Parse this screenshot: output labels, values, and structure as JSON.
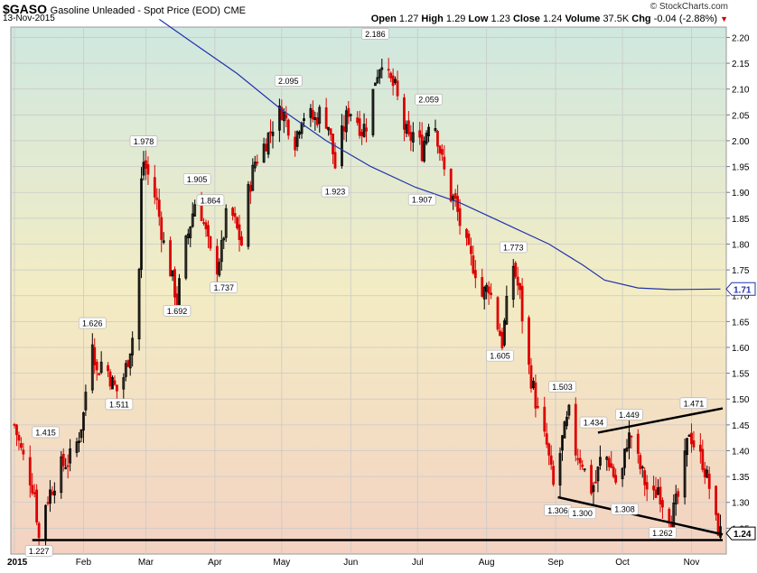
{
  "header": {
    "symbol": "$GASO",
    "description": "Gasoline Unleaded - Spot Price (EOD)",
    "exchange": "CME",
    "date": "13-Nov-2015",
    "brand": "© StockCharts.com",
    "open_label": "Open",
    "open": "1.27",
    "high_label": "High",
    "high": "1.29",
    "low_label": "Low",
    "low": "1.23",
    "close_label": "Close",
    "close": "1.24",
    "volume_label": "Volume",
    "volume": "37.5K",
    "chg_label": "Chg",
    "chg": "-0.04 (-2.88%)"
  },
  "colors": {
    "up": "#000000",
    "down": "#dd0000",
    "ma": "#2233aa",
    "bg_top": "#cfe8e0",
    "bg_mid": "#f3ecc4",
    "bg_bottom": "#f3d2c2"
  },
  "chart_data": {
    "type": "candlestick",
    "ylim": [
      1.2,
      2.22
    ],
    "y_ticks": [
      "2.20",
      "2.15",
      "2.10",
      "2.05",
      "2.00",
      "1.95",
      "1.90",
      "1.85",
      "1.80",
      "1.75",
      "1.70",
      "1.65",
      "1.60",
      "1.55",
      "1.50",
      "1.45",
      "1.40",
      "1.35",
      "1.30",
      "1.25"
    ],
    "x_labels": [
      {
        "label": "2015",
        "day": 0
      },
      {
        "label": "Feb",
        "day": 31
      },
      {
        "label": "Mar",
        "day": 59
      },
      {
        "label": "Apr",
        "day": 90
      },
      {
        "label": "May",
        "day": 120
      },
      {
        "label": "Jun",
        "day": 151
      },
      {
        "label": "Jul",
        "day": 181
      },
      {
        "label": "Aug",
        "day": 212
      },
      {
        "label": "Sep",
        "day": 243
      },
      {
        "label": "Oct",
        "day": 273
      },
      {
        "label": "Nov",
        "day": 304
      }
    ],
    "x_range_days": [
      0,
      318
    ],
    "price_path": [
      [
        0,
        1.45
      ],
      [
        3,
        1.4
      ],
      [
        6,
        1.36
      ],
      [
        9,
        1.32
      ],
      [
        11,
        1.23
      ],
      [
        14,
        1.3
      ],
      [
        18,
        1.34
      ],
      [
        21,
        1.37
      ],
      [
        24,
        1.38
      ],
      [
        27,
        1.4
      ],
      [
        29,
        1.43
      ],
      [
        31,
        1.47
      ],
      [
        33,
        1.56
      ],
      [
        35,
        1.62
      ],
      [
        37,
        1.55
      ],
      [
        40,
        1.58
      ],
      [
        44,
        1.53
      ],
      [
        47,
        1.51
      ],
      [
        50,
        1.56
      ],
      [
        53,
        1.62
      ],
      [
        56,
        1.75
      ],
      [
        57,
        1.92
      ],
      [
        58,
        1.96
      ],
      [
        61,
        1.92
      ],
      [
        64,
        1.88
      ],
      [
        67,
        1.8
      ],
      [
        70,
        1.75
      ],
      [
        73,
        1.69
      ],
      [
        76,
        1.78
      ],
      [
        79,
        1.84
      ],
      [
        82,
        1.9
      ],
      [
        85,
        1.84
      ],
      [
        88,
        1.78
      ],
      [
        90,
        1.74
      ],
      [
        93,
        1.79
      ],
      [
        96,
        1.88
      ],
      [
        99,
        1.84
      ],
      [
        102,
        1.8
      ],
      [
        105,
        1.9
      ],
      [
        108,
        1.96
      ],
      [
        111,
        1.98
      ],
      [
        114,
        2.01
      ],
      [
        117,
        2.04
      ],
      [
        120,
        2.06
      ],
      [
        123,
        2.03
      ],
      [
        126,
        2.0
      ],
      [
        129,
        2.05
      ],
      [
        132,
        2.05
      ],
      [
        135,
        2.04
      ],
      [
        138,
        2.06
      ],
      [
        141,
        2.03
      ],
      [
        144,
        1.95
      ],
      [
        147,
        2.01
      ],
      [
        150,
        2.06
      ],
      [
        153,
        2.05
      ],
      [
        156,
        2.02
      ],
      [
        159,
        2.04
      ],
      [
        162,
        2.12
      ],
      [
        165,
        2.16
      ],
      [
        168,
        2.12
      ],
      [
        171,
        2.1
      ],
      [
        174,
        2.04
      ],
      [
        177,
        2.0
      ],
      [
        180,
        2.02
      ],
      [
        183,
        1.98
      ],
      [
        186,
        2.04
      ],
      [
        189,
        2.03
      ],
      [
        192,
        1.96
      ],
      [
        195,
        1.9
      ],
      [
        198,
        1.88
      ],
      [
        201,
        1.82
      ],
      [
        204,
        1.78
      ],
      [
        207,
        1.75
      ],
      [
        210,
        1.7
      ],
      [
        213,
        1.72
      ],
      [
        216,
        1.66
      ],
      [
        219,
        1.61
      ],
      [
        221,
        1.68
      ],
      [
        224,
        1.76
      ],
      [
        227,
        1.7
      ],
      [
        230,
        1.58
      ],
      [
        233,
        1.52
      ],
      [
        236,
        1.45
      ],
      [
        239,
        1.41
      ],
      [
        242,
        1.33
      ],
      [
        244,
        1.37
      ],
      [
        246,
        1.42
      ],
      [
        249,
        1.47
      ],
      [
        252,
        1.4
      ],
      [
        255,
        1.38
      ],
      [
        258,
        1.32
      ],
      [
        261,
        1.34
      ],
      [
        264,
        1.4
      ],
      [
        267,
        1.38
      ],
      [
        270,
        1.34
      ],
      [
        273,
        1.36
      ],
      [
        275,
        1.42
      ],
      [
        277,
        1.43
      ],
      [
        280,
        1.38
      ],
      [
        283,
        1.34
      ],
      [
        286,
        1.3
      ],
      [
        289,
        1.33
      ],
      [
        292,
        1.29
      ],
      [
        295,
        1.27
      ],
      [
        298,
        1.31
      ],
      [
        301,
        1.38
      ],
      [
        303,
        1.44
      ],
      [
        306,
        1.4
      ],
      [
        309,
        1.38
      ],
      [
        312,
        1.33
      ],
      [
        315,
        1.26
      ],
      [
        317,
        1.24
      ]
    ],
    "moving_average": {
      "points": [
        [
          65,
          2.235
        ],
        [
          80,
          2.19
        ],
        [
          100,
          2.13
        ],
        [
          120,
          2.06
        ],
        [
          140,
          2.0
        ],
        [
          160,
          1.95
        ],
        [
          180,
          1.91
        ],
        [
          200,
          1.88
        ],
        [
          220,
          1.84
        ],
        [
          240,
          1.8
        ],
        [
          255,
          1.76
        ],
        [
          265,
          1.73
        ],
        [
          280,
          1.715
        ],
        [
          295,
          1.712
        ],
        [
          317,
          1.713
        ]
      ],
      "last_label": "1.71"
    },
    "last_price_label": "1.24",
    "annotations": [
      {
        "label": "1.227",
        "day": 11,
        "price": 1.227,
        "pos": "below"
      },
      {
        "label": "1.415",
        "day": 14,
        "price": 1.415,
        "pos": "above"
      },
      {
        "label": "1.626",
        "day": 35,
        "price": 1.626,
        "pos": "above"
      },
      {
        "label": "1.511",
        "day": 47,
        "price": 1.511,
        "pos": "below"
      },
      {
        "label": "1.978",
        "day": 58,
        "price": 1.978,
        "pos": "above"
      },
      {
        "label": "1.692",
        "day": 73,
        "price": 1.692,
        "pos": "below"
      },
      {
        "label": "1.905",
        "day": 82,
        "price": 1.905,
        "pos": "above"
      },
      {
        "label": "1.864",
        "day": 88,
        "price": 1.864,
        "pos": "above"
      },
      {
        "label": "1.737",
        "day": 94,
        "price": 1.737,
        "pos": "below"
      },
      {
        "label": "2.095",
        "day": 123,
        "price": 2.095,
        "pos": "above"
      },
      {
        "label": "1.923",
        "day": 144,
        "price": 1.923,
        "pos": "below"
      },
      {
        "label": "2.186",
        "day": 162,
        "price": 2.186,
        "pos": "above"
      },
      {
        "label": "2.059",
        "day": 186,
        "price": 2.059,
        "pos": "above"
      },
      {
        "label": "1.907",
        "day": 183,
        "price": 1.907,
        "pos": "below"
      },
      {
        "label": "1.773",
        "day": 224,
        "price": 1.773,
        "pos": "above"
      },
      {
        "label": "1.605",
        "day": 218,
        "price": 1.605,
        "pos": "below"
      },
      {
        "label": "1.503",
        "day": 246,
        "price": 1.503,
        "pos": "above"
      },
      {
        "label": "1.306",
        "day": 244,
        "price": 1.306,
        "pos": "below"
      },
      {
        "label": "1.300",
        "day": 255,
        "price": 1.3,
        "pos": "below"
      },
      {
        "label": "1.434",
        "day": 260,
        "price": 1.434,
        "pos": "above"
      },
      {
        "label": "1.449",
        "day": 276,
        "price": 1.449,
        "pos": "above"
      },
      {
        "label": "1.308",
        "day": 274,
        "price": 1.308,
        "pos": "below"
      },
      {
        "label": "1.262",
        "day": 291,
        "price": 1.262,
        "pos": "below"
      },
      {
        "label": "1.471",
        "day": 305,
        "price": 1.471,
        "pos": "above"
      }
    ],
    "trendlines": [
      {
        "from": [
          262,
          1.435
        ],
        "to": [
          318,
          1.482
        ]
      },
      {
        "from": [
          244,
          1.31
        ],
        "to": [
          318,
          1.238
        ]
      },
      {
        "from": [
          8,
          1.227
        ],
        "to": [
          318,
          1.227
        ]
      }
    ]
  }
}
